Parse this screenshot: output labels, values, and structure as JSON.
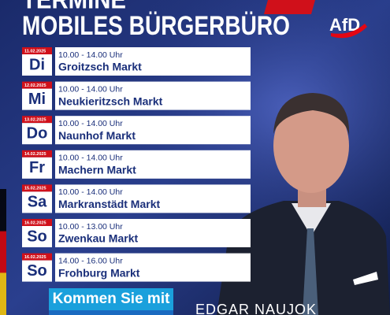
{
  "header": {
    "title_line1": "TERMINE",
    "title_line2": "MOBILES BÜRGERBÜRO",
    "logo": "AfD"
  },
  "entries": [
    {
      "date": "11.02.2025",
      "day": "Di",
      "time": "10.00 - 14.00 Uhr",
      "place": "Groitzsch Markt"
    },
    {
      "date": "12.02.2025",
      "day": "Mi",
      "time": "10.00 - 14.00 Uhr",
      "place": "Neukieritzsch Markt"
    },
    {
      "date": "13.02.2025",
      "day": "Do",
      "time": "10.00 - 14.00 Uhr",
      "place": "Naunhof Markt"
    },
    {
      "date": "14.02.2025",
      "day": "Fr",
      "time": "10.00 - 14.00 Uhr",
      "place": "Machern Markt"
    },
    {
      "date": "15.02.2025",
      "day": "Sa",
      "time": "10.00 - 14.00 Uhr",
      "place": "Markranstädt Markt"
    },
    {
      "date": "16.02.2025",
      "day": "So",
      "time": "10.00 - 13.00 Uhr",
      "place": "Zwenkau Markt"
    },
    {
      "date": "16.02.2025",
      "day": "So",
      "time": "14.00 - 16.00 Uhr",
      "place": "Frohburg Markt"
    }
  ],
  "footer": {
    "cta": "Kommen Sie mit",
    "name": "EDGAR NAUJOK"
  }
}
